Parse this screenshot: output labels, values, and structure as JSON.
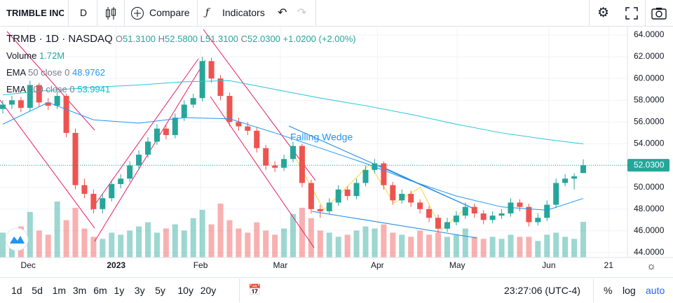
{
  "toolbar": {
    "symbol": "TRIMBLE INC",
    "interval": "D",
    "compare": "Compare",
    "indicators": "Indicators"
  },
  "legend": {
    "symbol": "TRMB",
    "interval": "1D",
    "exchange": "NASDAQ",
    "open_label": "O",
    "open": "51.3100",
    "high_label": "H",
    "high": "52.5800",
    "low_label": "L",
    "low": "51.3100",
    "close_label": "C",
    "close": "52.0300",
    "change": "+1.0200 (+2.00%)",
    "volume_label": "Volume",
    "volume": "1.72M",
    "ema50_params": "50 close 0",
    "ema50_value": "48.9762",
    "ema200_params": "200 close 0",
    "ema200_value": "53.9941"
  },
  "annotation": "Falling Wedge",
  "chart_data": {
    "type": "candlestick",
    "up_color": "#26a69a",
    "down_color": "#ef5350",
    "ohlc": [
      [
        57.2,
        58.0,
        56.8,
        57.6
      ],
      [
        57.6,
        58.4,
        57.2,
        58.0
      ],
      [
        58.0,
        58.3,
        56.9,
        57.3
      ],
      [
        57.3,
        59.8,
        57.0,
        59.4
      ],
      [
        59.4,
        59.6,
        57.4,
        57.8
      ],
      [
        57.8,
        58.2,
        57.1,
        57.5
      ],
      [
        57.5,
        58.8,
        57.2,
        58.4
      ],
      [
        58.4,
        58.6,
        54.6,
        55.0
      ],
      [
        55.0,
        55.4,
        49.8,
        50.2
      ],
      [
        50.2,
        50.8,
        49.0,
        49.4
      ],
      [
        49.4,
        49.8,
        47.6,
        48.0
      ],
      [
        48.0,
        49.4,
        47.6,
        49.0
      ],
      [
        49.0,
        50.7,
        48.7,
        50.3
      ],
      [
        50.3,
        51.2,
        49.9,
        50.8
      ],
      [
        50.8,
        52.4,
        50.5,
        52.0
      ],
      [
        52.0,
        53.4,
        51.6,
        53.0
      ],
      [
        53.0,
        54.6,
        52.7,
        54.2
      ],
      [
        54.2,
        55.8,
        53.9,
        55.4
      ],
      [
        55.4,
        55.7,
        54.4,
        54.8
      ],
      [
        54.8,
        56.8,
        54.5,
        56.4
      ],
      [
        56.4,
        58.0,
        56.1,
        57.6
      ],
      [
        57.6,
        58.6,
        57.3,
        58.2
      ],
      [
        58.2,
        62.0,
        57.9,
        61.6
      ],
      [
        61.6,
        61.9,
        59.6,
        60.0
      ],
      [
        60.0,
        60.3,
        58.0,
        58.4
      ],
      [
        58.4,
        58.7,
        55.6,
        56.0
      ],
      [
        56.0,
        56.4,
        55.2,
        55.6
      ],
      [
        55.6,
        56.0,
        54.8,
        55.2
      ],
      [
        55.2,
        55.5,
        53.2,
        53.6
      ],
      [
        53.6,
        53.9,
        51.6,
        52.0
      ],
      [
        52.0,
        52.4,
        51.4,
        51.8
      ],
      [
        51.8,
        53.0,
        51.5,
        52.6
      ],
      [
        52.6,
        54.2,
        52.3,
        53.8
      ],
      [
        53.8,
        54.0,
        50.0,
        50.4
      ],
      [
        50.4,
        50.7,
        47.6,
        48.0
      ],
      [
        48.0,
        48.4,
        47.2,
        47.8
      ],
      [
        47.8,
        49.0,
        47.5,
        48.6
      ],
      [
        48.6,
        50.2,
        48.3,
        49.8
      ],
      [
        49.8,
        50.1,
        48.8,
        49.2
      ],
      [
        49.2,
        50.8,
        48.9,
        50.4
      ],
      [
        50.4,
        52.0,
        50.1,
        51.6
      ],
      [
        51.6,
        52.6,
        51.3,
        52.2
      ],
      [
        52.2,
        52.4,
        49.8,
        50.2
      ],
      [
        50.2,
        50.5,
        48.4,
        48.8
      ],
      [
        48.8,
        49.8,
        48.5,
        49.4
      ],
      [
        49.4,
        49.7,
        48.2,
        48.6
      ],
      [
        48.6,
        48.9,
        47.6,
        48.0
      ],
      [
        48.0,
        48.3,
        46.8,
        47.2
      ],
      [
        47.2,
        47.5,
        45.8,
        46.2
      ],
      [
        46.2,
        47.2,
        45.9,
        46.8
      ],
      [
        46.8,
        47.8,
        46.5,
        47.4
      ],
      [
        47.4,
        48.6,
        47.1,
        48.2
      ],
      [
        48.2,
        48.5,
        47.2,
        47.6
      ],
      [
        47.6,
        47.9,
        46.6,
        47.0
      ],
      [
        47.0,
        47.8,
        46.7,
        47.4
      ],
      [
        47.4,
        48.0,
        47.1,
        47.6
      ],
      [
        47.6,
        49.0,
        47.3,
        48.6
      ],
      [
        48.6,
        48.9,
        47.8,
        48.2
      ],
      [
        48.2,
        48.5,
        46.4,
        46.8
      ],
      [
        46.8,
        47.6,
        46.5,
        47.2
      ],
      [
        47.2,
        48.8,
        46.9,
        48.4
      ],
      [
        48.4,
        50.8,
        48.1,
        50.4
      ],
      [
        50.4,
        51.2,
        50.1,
        50.8
      ],
      [
        50.8,
        51.3,
        49.8,
        51.01
      ],
      [
        51.31,
        52.58,
        51.31,
        52.03
      ]
    ],
    "volumes": [
      1.2,
      1.0,
      1.5,
      2.2,
      1.3,
      1.1,
      2.7,
      1.8,
      2.4,
      1.4,
      1.0,
      0.9,
      1.2,
      1.1,
      1.3,
      1.5,
      1.7,
      1.2,
      1.4,
      1.6,
      1.3,
      1.9,
      2.3,
      1.6,
      2.6,
      1.8,
      1.4,
      1.2,
      1.7,
      1.3,
      1.1,
      1.4,
      2.1,
      2.4,
      1.9,
      1.3,
      1.2,
      1.0,
      1.1,
      1.3,
      1.5,
      1.4,
      1.6,
      1.2,
      1.1,
      1.0,
      1.3,
      1.1,
      1.2,
      1.0,
      1.1,
      1.4,
      1.0,
      0.9,
      1.0,
      0.9,
      1.1,
      1.0,
      1.0,
      0.8,
      1.1,
      1.2,
      1.0,
      0.9,
      1.72
    ],
    "series": [
      {
        "name": "EMA",
        "color": "#2196f3",
        "index": [
          0,
          5,
          10,
          15,
          20,
          25,
          30,
          35,
          40,
          45,
          50,
          55,
          60,
          64
        ],
        "values": [
          55.8,
          57.8,
          56.2,
          55.9,
          56.4,
          56.3,
          55.0,
          53.6,
          52.2,
          50.6,
          49.2,
          48.2,
          47.9,
          48.98
        ]
      },
      {
        "name": "EMA",
        "color": "#26c6da",
        "index": [
          0,
          5,
          10,
          15,
          20,
          25,
          30,
          35,
          40,
          45,
          50,
          55,
          60,
          64
        ],
        "values": [
          58.5,
          58.9,
          59.2,
          59.4,
          59.7,
          59.8,
          59.0,
          58.2,
          57.5,
          56.7,
          55.8,
          55.0,
          54.4,
          53.99
        ]
      }
    ],
    "xlabels": [
      {
        "label": "Dec",
        "index": 2.8
      },
      {
        "label": "2023",
        "index": 12.5
      },
      {
        "label": "Feb",
        "index": 21.8
      },
      {
        "label": "Mar",
        "index": 30.6
      },
      {
        "label": "Apr",
        "index": 41.3
      },
      {
        "label": "May",
        "index": 50.1
      },
      {
        "label": "Jun",
        "index": 60.2
      },
      {
        "label": "21",
        "index": 66.8
      }
    ],
    "ylim": [
      43.55,
      64.77
    ],
    "yticks": [
      {
        "value": 44,
        "label": "44.0000"
      },
      {
        "value": 46,
        "label": "46.0000"
      },
      {
        "value": 48,
        "label": "48.0000"
      },
      {
        "value": 50,
        "label": "50.0000"
      },
      {
        "value": 52,
        "label": "52.0000"
      },
      {
        "value": 54,
        "label": "54.0000"
      },
      {
        "value": 56,
        "label": "56.0000"
      },
      {
        "value": 58,
        "label": "58.0000"
      },
      {
        "value": 60,
        "label": "60.0000"
      },
      {
        "value": 62,
        "label": "62.0000"
      },
      {
        "value": 64,
        "label": "64.0000"
      }
    ],
    "last_price": {
      "value": 52.03,
      "label": "52.0300"
    },
    "grid": true
  },
  "bottom": {
    "ranges": [
      "1d",
      "5d",
      "1m",
      "3m",
      "6m",
      "1y",
      "3y",
      "5y",
      "10y",
      "20y"
    ],
    "time": "23:27:06 (UTC-4)",
    "percent": "%",
    "log": "log",
    "auto": "auto"
  }
}
